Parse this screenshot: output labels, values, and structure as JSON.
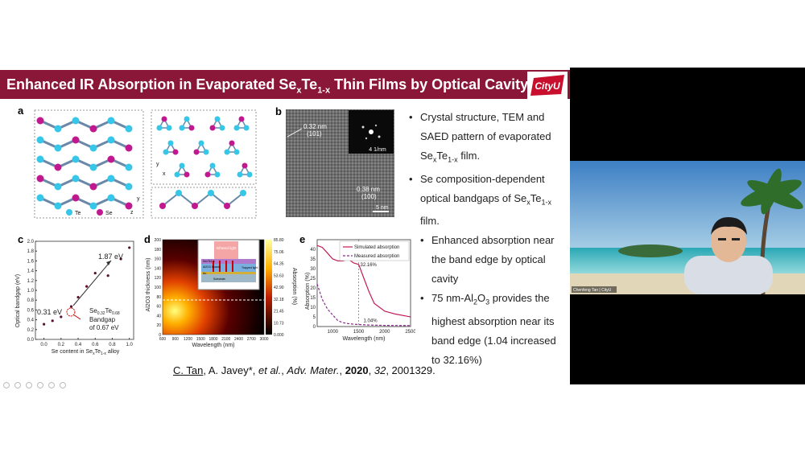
{
  "slide": {
    "title_main": "Enhanced IR Absorption in Evaporated Se",
    "title_sub1": "x",
    "title_mid": "Te",
    "title_sub2": "1-x",
    "title_end": " Thin Films by Optical Cavity",
    "logo_text": "CityU",
    "panel_labels": {
      "a": "a",
      "b": "b",
      "c": "c",
      "d": "d",
      "e": "e"
    },
    "legend_a": {
      "te": "Te",
      "se": "Se"
    },
    "tem": {
      "l1": "0.32 nm",
      "l1b": "(101)",
      "l2": "0.38 nm",
      "l2b": "(100)",
      "scale": "5 nm",
      "saed_scale": "4 1/nm"
    },
    "bullets_top": [
      {
        "line1": "Crystal structure, TEM and",
        "line2": "SAED pattern of evaporated",
        "line3a": "Se",
        "line3b": "x",
        "line3c": "Te",
        "line3d": "1-x",
        "line3e": " film."
      },
      {
        "line1": "Se composition-dependent",
        "line2a": "optical bandgaps of Se",
        "line2b": "x",
        "line2c": "Te",
        "line2d": "1-x",
        "line3": "film."
      }
    ],
    "bullets_bottom": [
      {
        "line1": "Enhanced absorption near",
        "line2": "the band edge by optical",
        "line3": "cavity"
      },
      {
        "line1": "75 nm-Al",
        "line1s": "2",
        "line1b": "O",
        "line1s2": "3",
        "line1c": " provides the",
        "line2": "highest absorption near its",
        "line3": "band edge (1.04 increased",
        "line4": "to 32.16%)"
      }
    ],
    "citation": {
      "author1": "C. Tan",
      "rest1": ", A. Javey*, ",
      "etal": "et al.",
      "journal": "Adv. Mater.",
      "year": "2020",
      "vol": "32",
      "pages": ", 2001329."
    },
    "chart_c": {
      "ylabel": "Optical bandgap (eV)",
      "xlabel": "Se content in Se",
      "ann_high": "1.87 eV",
      "ann_low": "0.31 eV",
      "ann_se": "Se",
      "ann_sub1": "0.32",
      "ann_te": "Te",
      "ann_sub2": "0.68",
      "ann_bandgap": "Bandgap",
      "ann_value": "of 0.67 eV"
    },
    "chart_d": {
      "ylabel": "Al2O3 thickness (nm)",
      "xlabel": "Wavelength (nm)",
      "cbar_label": "Absorption (%)",
      "cbar_ticks": [
        "85.80",
        "75.06",
        "64.35",
        "53.63",
        "42.90",
        "32.18",
        "21.45",
        "10.73",
        "0.000"
      ],
      "inset_top": "Infrared light",
      "inset_trapped": "Trapped light",
      "inset_layers": [
        "SexTe1-x",
        "Al2O3 Spacer",
        "Au",
        "Substrate"
      ]
    },
    "chart_e": {
      "ylabel": "Absorption (%)",
      "xlabel": "Wavelength (nm)",
      "legend_sim": "Simulated absorption",
      "legend_meas": "Measured absorption",
      "ann1": "32.16%",
      "ann2": "1.04%"
    }
  },
  "video": {
    "caption": "Chenfeng Tan | CityU"
  },
  "colors": {
    "title_bg": "#8a1738",
    "te_atom": "#35c6e8",
    "se_atom": "#c2188f",
    "sim_line": "#c21a5a",
    "meas_line": "#8b2a8f"
  },
  "chart_data": [
    {
      "type": "scatter",
      "title": "",
      "xlabel": "Se content in SexTe1-x alloy",
      "ylabel": "Optical bandgap (eV)",
      "xlim": [
        -0.1,
        1.05
      ],
      "ylim": [
        0.0,
        2.0
      ],
      "x": [
        0.0,
        0.1,
        0.2,
        0.32,
        0.4,
        0.5,
        0.6,
        0.75,
        0.9,
        1.0
      ],
      "y": [
        0.31,
        0.38,
        0.46,
        0.67,
        0.86,
        1.08,
        1.35,
        1.3,
        1.64,
        1.87
      ],
      "x_ticks": [
        "0.0",
        "0.2",
        "0.4",
        "0.6",
        "0.8",
        "1.0"
      ],
      "y_ticks": [
        "0.0",
        "0.2",
        "0.4",
        "0.6",
        "0.8",
        "1.0",
        "1.2",
        "1.4",
        "1.6",
        "1.8",
        "2.0"
      ]
    },
    {
      "type": "heatmap",
      "xlabel": "Wavelength (nm)",
      "ylabel": "Al2O3 thickness (nm)",
      "x_ticks": [
        "600",
        "900",
        "1200",
        "1500",
        "1800",
        "2100",
        "2400",
        "2700",
        "3000"
      ],
      "y_ticks": [
        "0",
        "20",
        "40",
        "60",
        "80",
        "100",
        "120",
        "140",
        "160",
        "180",
        "200"
      ],
      "xlim": [
        600,
        3000
      ],
      "ylim": [
        0,
        200
      ],
      "colorbar_range": [
        0.0,
        85.8
      ],
      "highlight_line_thickness": 75
    },
    {
      "type": "line",
      "xlabel": "Wavelength (nm)",
      "ylabel": "Absorption (%)",
      "xlim": [
        700,
        2500
      ],
      "ylim": [
        0,
        45
      ],
      "x_ticks": [
        "1000",
        "1500",
        "2000",
        "2500"
      ],
      "y_ticks": [
        "0",
        "5",
        "10",
        "15",
        "20",
        "25",
        "30",
        "35",
        "40"
      ],
      "series": [
        {
          "name": "Simulated absorption",
          "x": [
            700,
            800,
            900,
            1000,
            1100,
            1200,
            1300,
            1400,
            1500,
            1600,
            1700,
            1800,
            2000,
            2200,
            2500
          ],
          "y": [
            42,
            41,
            38,
            35,
            34,
            34,
            35,
            33,
            32.16,
            25,
            18,
            12,
            8,
            6.5,
            5
          ]
        },
        {
          "name": "Measured absorption",
          "x": [
            700,
            800,
            900,
            1000,
            1100,
            1200,
            1300,
            1400,
            1500,
            1700,
            2000,
            2500
          ],
          "y": [
            22,
            14,
            9,
            6,
            3,
            2,
            1.5,
            1.2,
            1.04,
            0.8,
            0.6,
            0.5
          ]
        }
      ],
      "annotations": [
        "32.16%",
        "1.04%"
      ]
    }
  ]
}
